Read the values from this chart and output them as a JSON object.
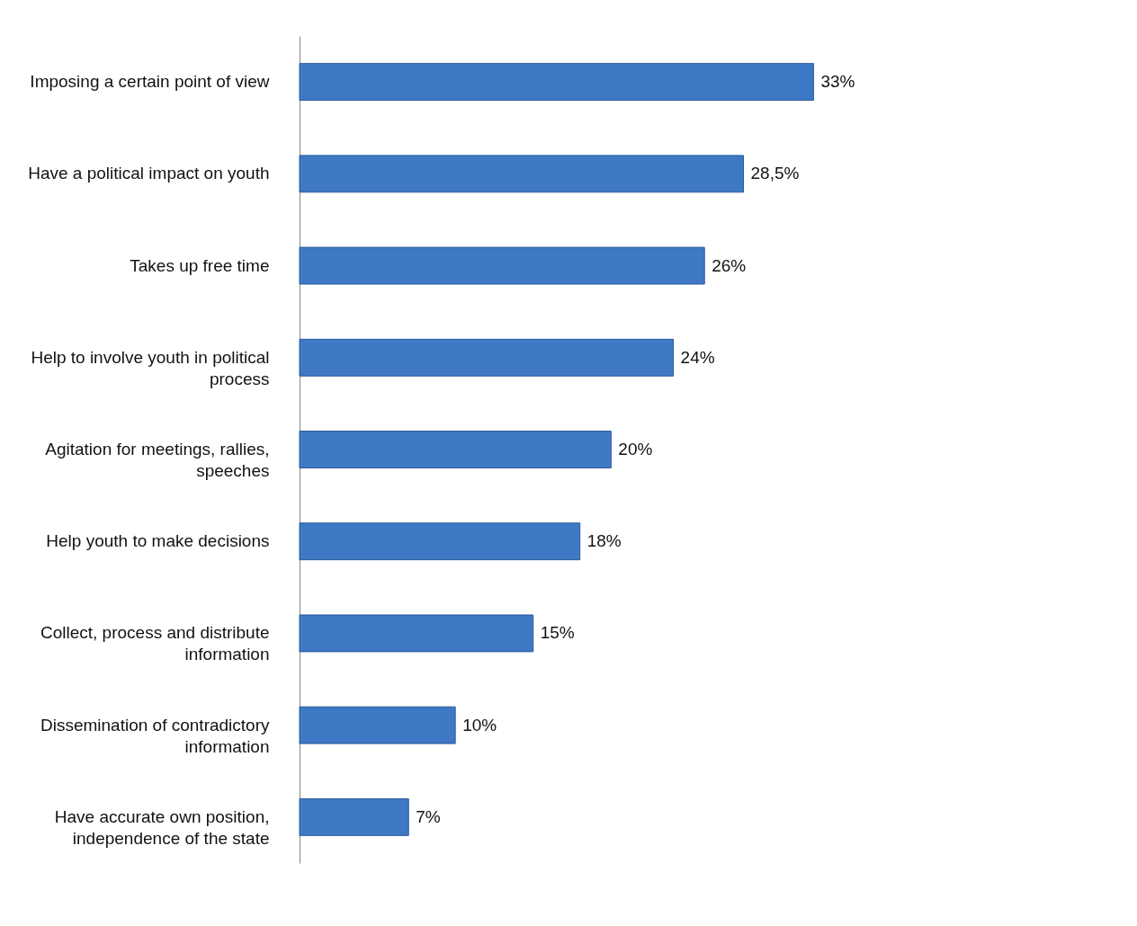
{
  "chart_data": {
    "type": "bar",
    "orientation": "horizontal",
    "categories": [
      "Imposing a certain point of view",
      "Have a political impact on youth",
      "Takes up free time",
      "Help to involve youth in political process",
      "Agitation for meetings, rallies, speeches",
      "Help youth to make decisions",
      "Collect, process and distribute information",
      "Dissemination of contradictory information",
      "Have accurate own position, independence of the state"
    ],
    "values": [
      33,
      28.5,
      26,
      24,
      20,
      18,
      15,
      10,
      7
    ],
    "value_labels": [
      "33%",
      "28,5%",
      "26%",
      "24%",
      "20%",
      "18%",
      "15%",
      "10%",
      "7%"
    ],
    "color": "#3f78c4"
  }
}
